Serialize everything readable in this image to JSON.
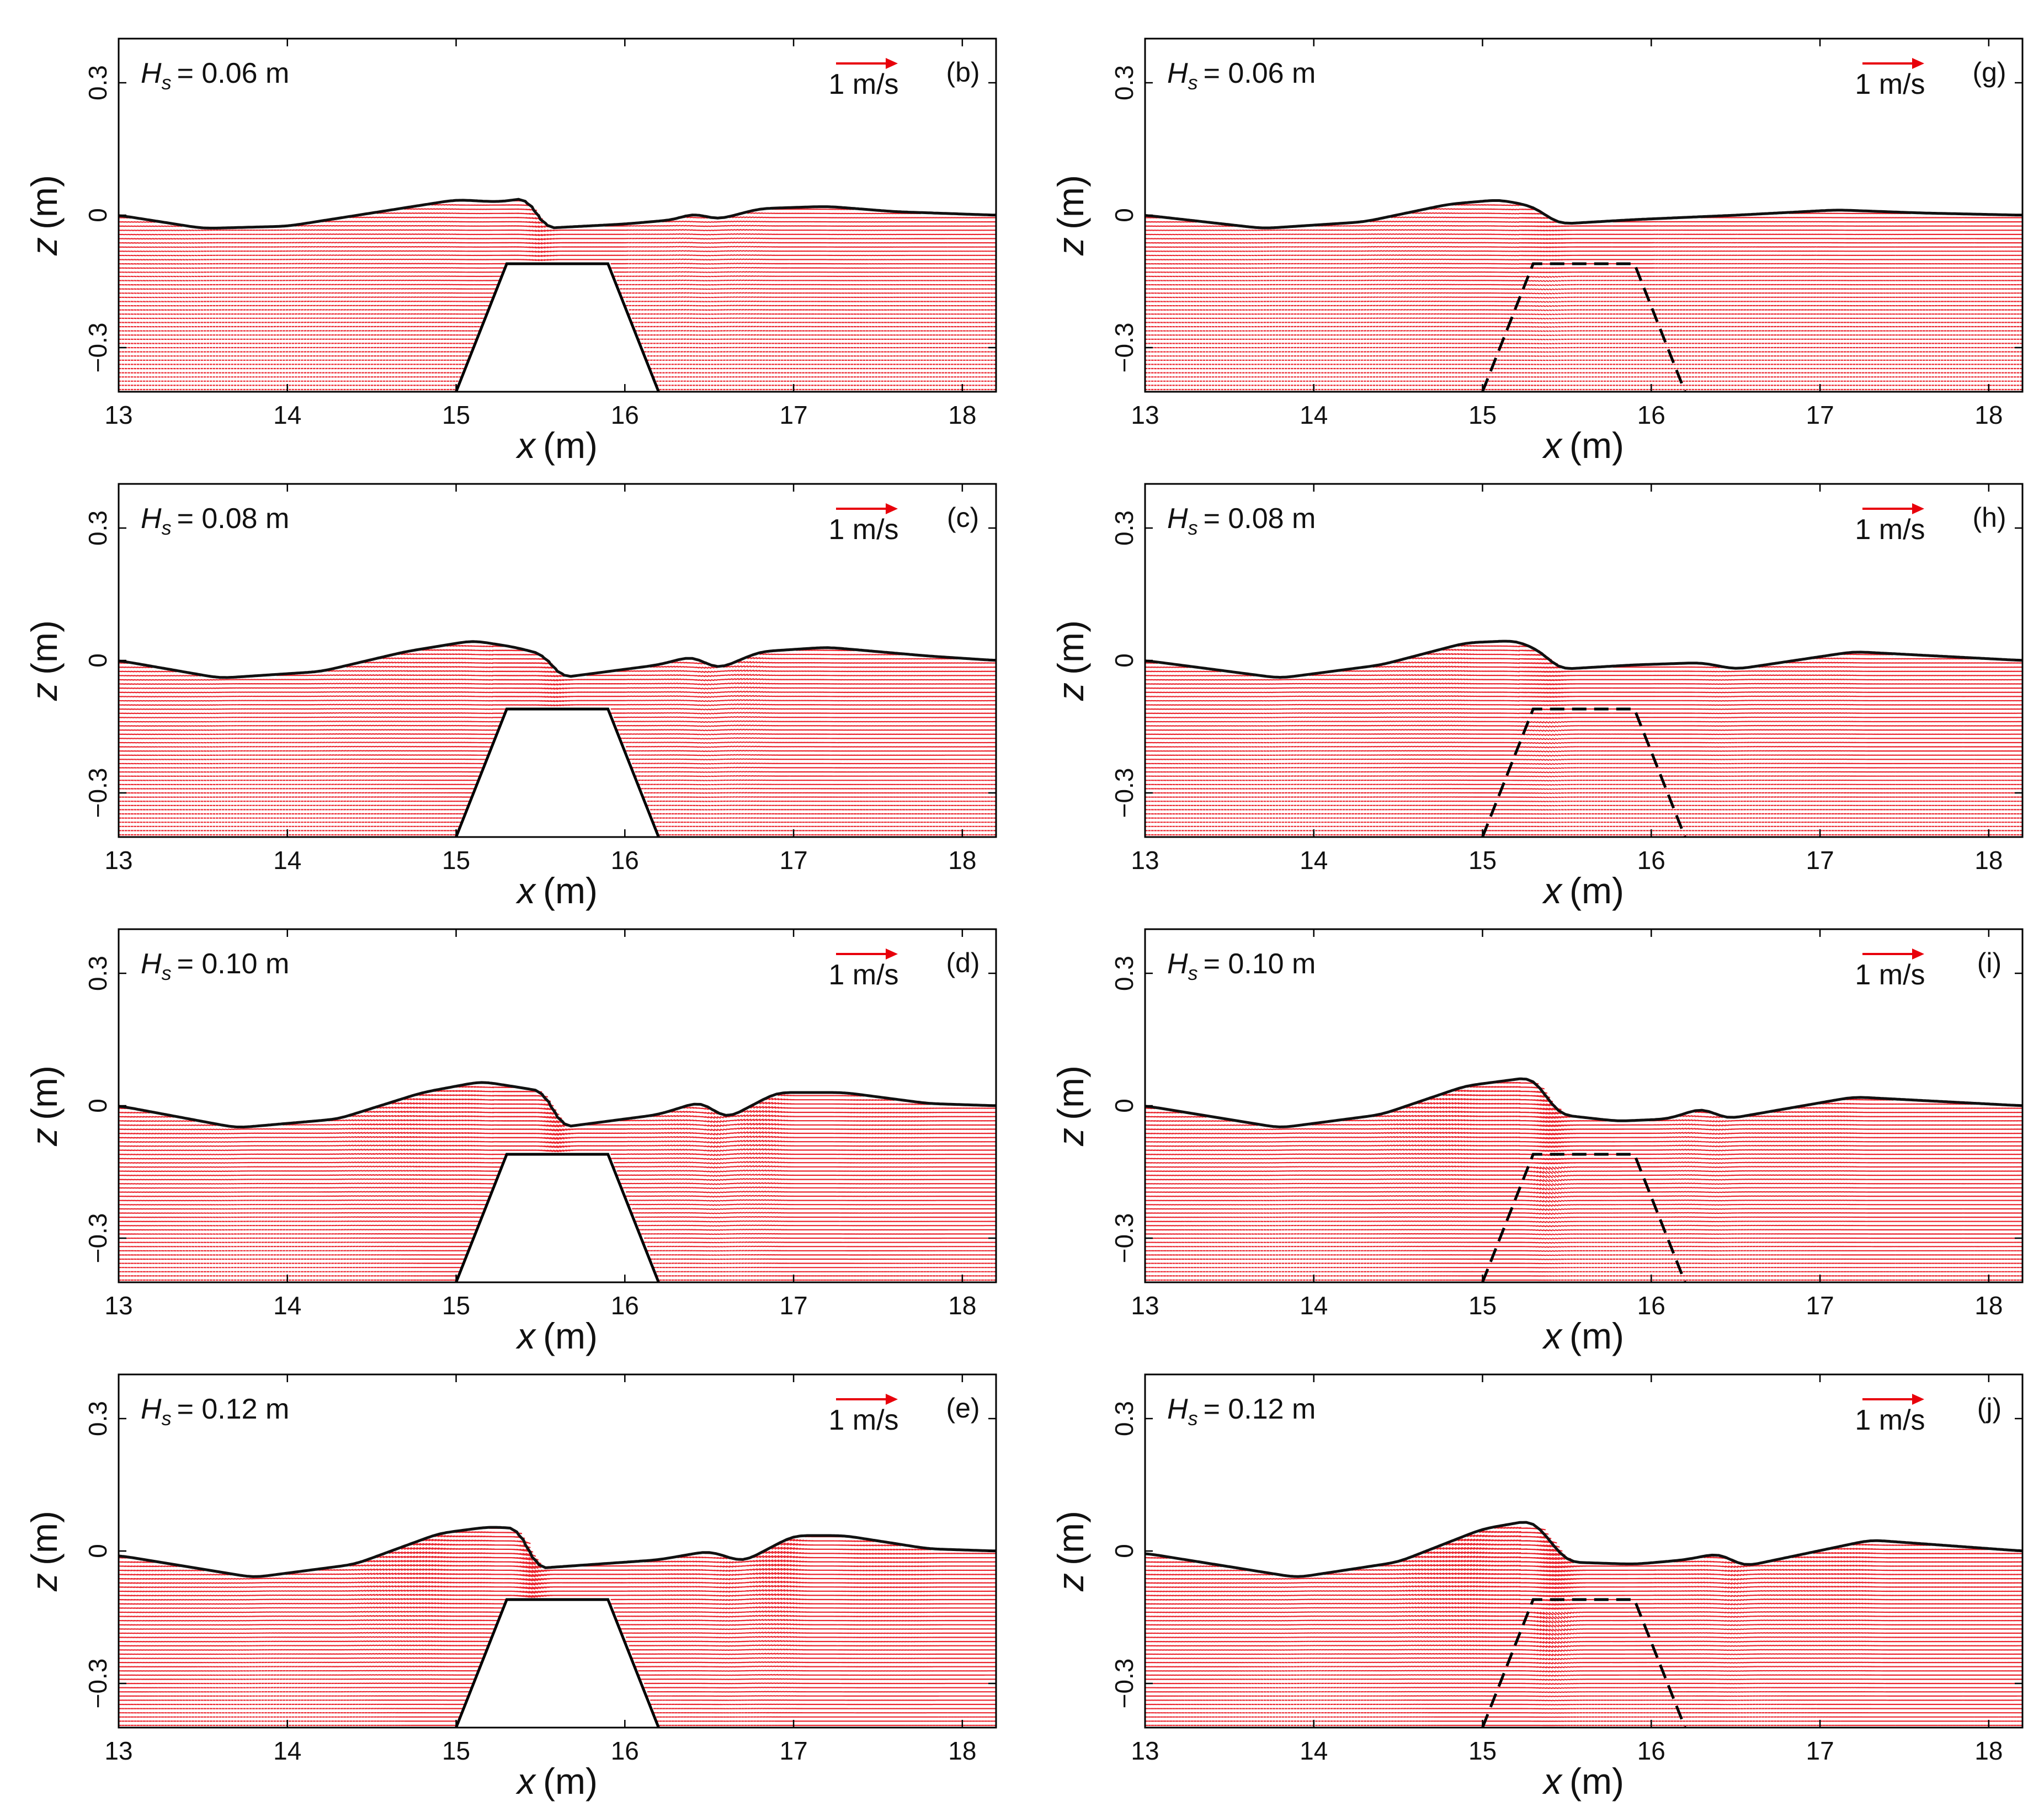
{
  "panel_config": {
    "xlim": [
      13,
      18.2
    ],
    "ylim": [
      -0.4,
      0.4
    ],
    "xticks": [
      13,
      14,
      15,
      16,
      17,
      18
    ],
    "yticks": [
      {
        "v": 0.3,
        "label": "0.3"
      },
      {
        "v": 0,
        "label": "0"
      },
      {
        "v": -0.3,
        "label": "−0.3"
      }
    ],
    "xlabel_var": "x",
    "xlabel_unit": "(m)",
    "ylabel_var": "z",
    "ylabel_unit": "(m)",
    "scale_arrow_label": "1 m/s",
    "hs_symbol": "H",
    "hs_sub": "s",
    "vector_color": "#e8000b",
    "surface_color": "#111111",
    "structure_outline": [
      [
        15.0,
        -0.4
      ],
      [
        15.3,
        -0.11
      ],
      [
        15.9,
        -0.11
      ],
      [
        16.2,
        -0.4
      ]
    ]
  },
  "chart_data": [
    {
      "type": "vector-field",
      "label": "(b)",
      "hs": "= 0.06 m",
      "amplitude": 0.06,
      "structure": "solid",
      "surface": [
        [
          13,
          0
        ],
        [
          13.5,
          -0.03
        ],
        [
          14,
          -0.025
        ],
        [
          14.5,
          0.005
        ],
        [
          15,
          0.035
        ],
        [
          15.25,
          0.03
        ],
        [
          15.45,
          0.04
        ],
        [
          15.5,
          -0.03
        ],
        [
          16,
          -0.02
        ],
        [
          16.3,
          -0.01
        ],
        [
          16.4,
          0.005
        ],
        [
          16.55,
          -0.01
        ],
        [
          16.8,
          0.015
        ],
        [
          17.2,
          0.02
        ],
        [
          17.6,
          0.008
        ],
        [
          18.2,
          0
        ]
      ]
    },
    {
      "type": "vector-field",
      "label": "(c)",
      "hs": "= 0.08 m",
      "amplitude": 0.08,
      "structure": "solid",
      "surface": [
        [
          13,
          0
        ],
        [
          13.6,
          -0.04
        ],
        [
          14.2,
          -0.025
        ],
        [
          14.7,
          0.02
        ],
        [
          15.1,
          0.045
        ],
        [
          15.35,
          0.03
        ],
        [
          15.55,
          0.01
        ],
        [
          15.6,
          -0.04
        ],
        [
          16.2,
          -0.01
        ],
        [
          16.4,
          0.01
        ],
        [
          16.55,
          -0.02
        ],
        [
          16.8,
          0.02
        ],
        [
          17.2,
          0.03
        ],
        [
          17.8,
          0.01
        ],
        [
          18.2,
          0
        ]
      ]
    },
    {
      "type": "vector-field",
      "label": "(d)",
      "hs": "= 0.10 m",
      "amplitude": 0.1,
      "structure": "solid",
      "surface": [
        [
          13,
          0
        ],
        [
          13.7,
          -0.05
        ],
        [
          14.3,
          -0.03
        ],
        [
          14.8,
          0.03
        ],
        [
          15.15,
          0.055
        ],
        [
          15.4,
          0.04
        ],
        [
          15.55,
          0.03
        ],
        [
          15.6,
          -0.05
        ],
        [
          16.2,
          -0.02
        ],
        [
          16.45,
          0.01
        ],
        [
          16.6,
          -0.03
        ],
        [
          16.9,
          0.03
        ],
        [
          17.3,
          0.03
        ],
        [
          17.8,
          0.005
        ],
        [
          18.2,
          0
        ]
      ]
    },
    {
      "type": "vector-field",
      "label": "(e)",
      "hs": "= 0.12 m",
      "amplitude": 0.12,
      "structure": "solid",
      "surface": [
        [
          13,
          -0.01
        ],
        [
          13.8,
          -0.06
        ],
        [
          14.4,
          -0.03
        ],
        [
          14.9,
          0.04
        ],
        [
          15.2,
          0.055
        ],
        [
          15.4,
          0.05
        ],
        [
          15.45,
          -0.04
        ],
        [
          16.2,
          -0.02
        ],
        [
          16.5,
          0.0
        ],
        [
          16.7,
          -0.025
        ],
        [
          17.0,
          0.035
        ],
        [
          17.3,
          0.035
        ],
        [
          17.8,
          0.005
        ],
        [
          18.2,
          0
        ]
      ]
    },
    {
      "type": "vector-field",
      "label": "(g)",
      "hs": "= 0.06 m",
      "amplitude": 0.06,
      "structure": "dashed",
      "surface": [
        [
          13,
          0
        ],
        [
          13.7,
          -0.03
        ],
        [
          14.3,
          -0.015
        ],
        [
          14.8,
          0.025
        ],
        [
          15.1,
          0.035
        ],
        [
          15.3,
          0.02
        ],
        [
          15.45,
          -0.02
        ],
        [
          15.9,
          -0.01
        ],
        [
          16.5,
          0.0
        ],
        [
          17.1,
          0.012
        ],
        [
          17.6,
          0.005
        ],
        [
          18.2,
          0
        ]
      ]
    },
    {
      "type": "vector-field",
      "label": "(h)",
      "hs": "= 0.08 m",
      "amplitude": 0.08,
      "structure": "dashed",
      "surface": [
        [
          13,
          0
        ],
        [
          13.8,
          -0.04
        ],
        [
          14.4,
          -0.01
        ],
        [
          14.9,
          0.04
        ],
        [
          15.2,
          0.045
        ],
        [
          15.35,
          0.02
        ],
        [
          15.45,
          -0.02
        ],
        [
          15.9,
          -0.01
        ],
        [
          16.3,
          -0.005
        ],
        [
          16.5,
          -0.02
        ],
        [
          17.2,
          0.02
        ],
        [
          18.2,
          0
        ]
      ]
    },
    {
      "type": "vector-field",
      "label": "(i)",
      "hs": "= 0.10 m",
      "amplitude": 0.1,
      "structure": "dashed",
      "surface": [
        [
          13,
          0
        ],
        [
          13.8,
          -0.05
        ],
        [
          14.4,
          -0.02
        ],
        [
          14.9,
          0.045
        ],
        [
          15.3,
          0.065
        ],
        [
          15.45,
          -0.02
        ],
        [
          15.8,
          -0.035
        ],
        [
          16.1,
          -0.03
        ],
        [
          16.3,
          -0.005
        ],
        [
          16.45,
          -0.03
        ],
        [
          17.2,
          0.02
        ],
        [
          18.2,
          0
        ]
      ]
    },
    {
      "type": "vector-field",
      "label": "(j)",
      "hs": "= 0.12 m",
      "amplitude": 0.12,
      "structure": "dashed",
      "surface": [
        [
          13,
          -0.005
        ],
        [
          13.9,
          -0.06
        ],
        [
          14.5,
          -0.025
        ],
        [
          15.0,
          0.05
        ],
        [
          15.3,
          0.07
        ],
        [
          15.5,
          -0.025
        ],
        [
          15.9,
          -0.03
        ],
        [
          16.2,
          -0.02
        ],
        [
          16.4,
          -0.005
        ],
        [
          16.55,
          -0.035
        ],
        [
          17.3,
          0.025
        ],
        [
          18.2,
          0
        ]
      ]
    }
  ]
}
